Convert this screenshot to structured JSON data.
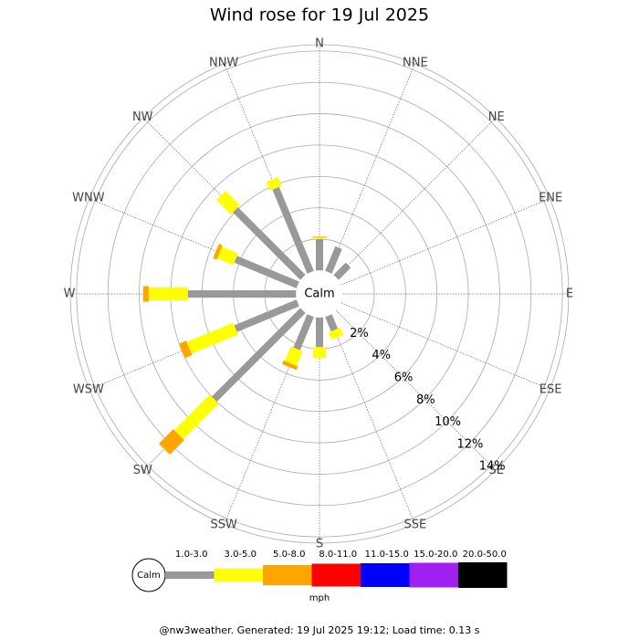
{
  "chart_data": {
    "type": "windrose",
    "title": "Wind rose for 19 Jul 2025",
    "categories": [
      "N",
      "NNE",
      "NE",
      "ENE",
      "E",
      "ESE",
      "SE",
      "SSE",
      "S",
      "SSW",
      "SW",
      "WSW",
      "W",
      "WNW",
      "NW",
      "NNW"
    ],
    "series": [
      {
        "name": "1.0-3.0",
        "color": "#999999",
        "values": [
          2.0,
          1.7,
          1.1,
          0,
          0,
          0,
          0,
          1.0,
          1.9,
          2.3,
          8.0,
          4.3,
          6.9,
          4.3,
          6.1,
          5.8
        ]
      },
      {
        "name": "3.0-5.0",
        "color": "#ffff00",
        "values": [
          0.1,
          0,
          0,
          0,
          0,
          0,
          0,
          0.5,
          0.7,
          1.0,
          3.2,
          3.2,
          2.5,
          1.1,
          1.3,
          0.6
        ]
      },
      {
        "name": "5.0-8.0",
        "color": "#ffa500",
        "values": [
          0.05,
          0,
          0,
          0,
          0,
          0,
          0,
          0,
          0,
          0.25,
          1.3,
          0.5,
          0.35,
          0.25,
          0,
          0
        ]
      },
      {
        "name": "8.0-11.0",
        "color": "#ff0000",
        "values": [
          0,
          0,
          0,
          0,
          0,
          0,
          0,
          0,
          0,
          0,
          0,
          0,
          0,
          0,
          0,
          0
        ]
      },
      {
        "name": "11.0-15.0",
        "color": "#0000ff",
        "values": [
          0,
          0,
          0,
          0,
          0,
          0,
          0,
          0,
          0,
          0,
          0,
          0,
          0,
          0,
          0,
          0
        ]
      },
      {
        "name": "15.0-20.0",
        "color": "#a020f0",
        "values": [
          0,
          0,
          0,
          0,
          0,
          0,
          0,
          0,
          0,
          0,
          0,
          0,
          0,
          0,
          0,
          0
        ]
      },
      {
        "name": "20.0-50.0",
        "color": "#000000",
        "values": [
          0,
          0,
          0,
          0,
          0,
          0,
          0,
          0,
          0,
          0,
          0,
          0,
          0,
          0,
          0,
          0
        ]
      }
    ],
    "ylim": [
      0,
      14.4
    ],
    "yticks": [
      {
        "value": 2,
        "label": "2%"
      },
      {
        "value": 4,
        "label": "4%"
      },
      {
        "value": 6,
        "label": "6%"
      },
      {
        "value": 8,
        "label": "8%"
      },
      {
        "value": 10,
        "label": "10%"
      },
      {
        "value": 12,
        "label": "12%"
      },
      {
        "value": 14,
        "label": "14%"
      }
    ],
    "calm_label": "Calm",
    "unit_label": "mph",
    "footer": "@nw3weather. Generated: 19 Jul 2025 19:12; Load time: 0.13 s"
  }
}
